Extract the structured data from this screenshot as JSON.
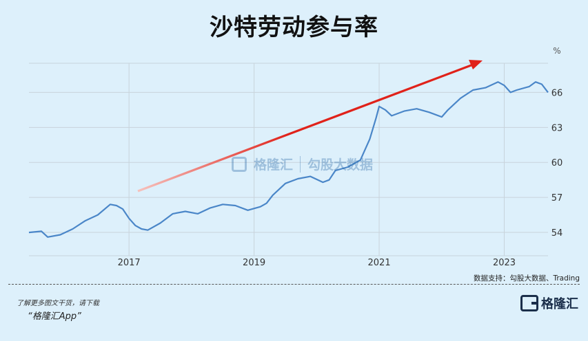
{
  "title": "沙特劳动参与率",
  "watermark": {
    "brand": "格隆汇",
    "logo_letter": "G",
    "product": "勾股大数据"
  },
  "source": "数据支持：勾股大数据、Trading",
  "footer": {
    "line1": "了解更多图文干货，请下载",
    "line2": "“格隆汇App”"
  },
  "brand": {
    "name": "格隆汇",
    "logo_letter": "G"
  },
  "colors": {
    "background": "#ddf0fb",
    "line": "#4a86c8",
    "arrow": "#e0221a",
    "grid": "#c8d3db"
  },
  "chart_data": {
    "type": "line",
    "title": "沙特劳动参与率",
    "ylabel": "%",
    "ylim": [
      52,
      68.5
    ],
    "xlim": [
      2015.4,
      2023.7
    ],
    "y_ticks": [
      54,
      57,
      60,
      63,
      66
    ],
    "x_ticks": [
      2017,
      2019,
      2021,
      2023
    ],
    "grid": "horizontal",
    "series": [
      {
        "x": [
          2015.4,
          2015.6,
          2015.7,
          2015.9,
          2016.1,
          2016.3,
          2016.5,
          2016.7,
          2016.8,
          2016.9,
          2017.0,
          2017.1,
          2017.2,
          2017.3,
          2017.5,
          2017.7,
          2017.9,
          2018.1,
          2018.3,
          2018.5,
          2018.7,
          2018.9,
          2019.1,
          2019.2,
          2019.3,
          2019.5,
          2019.7,
          2019.9,
          2020.1,
          2020.2,
          2020.3,
          2020.5,
          2020.7,
          2020.85,
          2020.95,
          2021.0,
          2021.1,
          2021.2,
          2021.4,
          2021.6,
          2021.8,
          2022.0,
          2022.1,
          2022.3,
          2022.5,
          2022.7,
          2022.9,
          2023.0,
          2023.1,
          2023.2,
          2023.4,
          2023.5,
          2023.6,
          2023.7
        ],
        "y": [
          54.0,
          54.1,
          53.6,
          53.8,
          54.3,
          55.0,
          55.5,
          56.4,
          56.3,
          56.0,
          55.2,
          54.6,
          54.3,
          54.2,
          54.8,
          55.6,
          55.8,
          55.6,
          56.1,
          56.4,
          56.3,
          55.9,
          56.2,
          56.5,
          57.2,
          58.2,
          58.6,
          58.8,
          58.3,
          58.5,
          59.3,
          59.6,
          60.2,
          62.0,
          63.8,
          64.8,
          64.5,
          64.0,
          64.4,
          64.6,
          64.3,
          63.9,
          64.5,
          65.5,
          66.2,
          66.4,
          66.9,
          66.6,
          66.0,
          66.2,
          66.5,
          66.9,
          66.7,
          66.0
        ]
      }
    ],
    "annotation": "trend-arrow"
  }
}
